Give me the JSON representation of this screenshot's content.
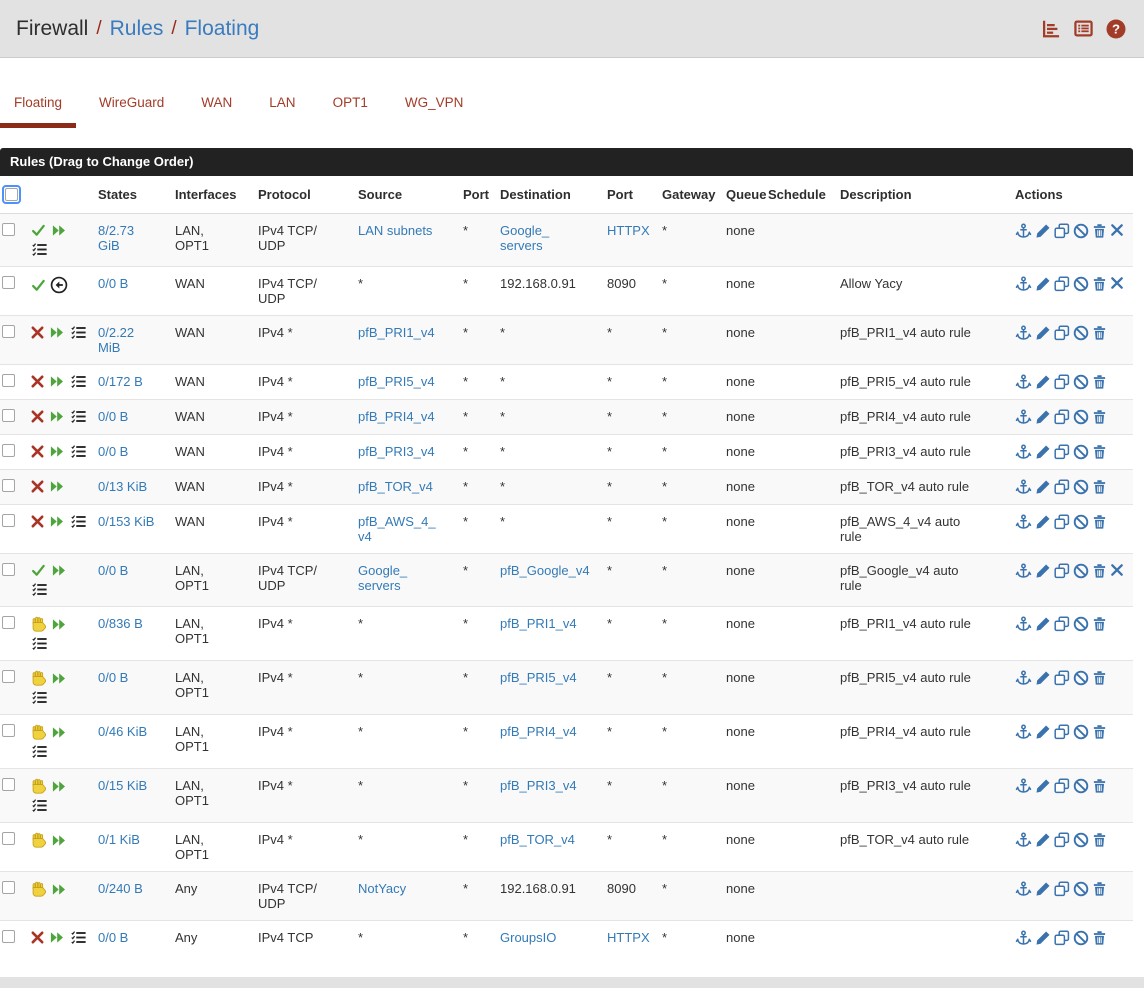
{
  "breadcrumb": {
    "section": "Firewall",
    "separator": "/",
    "page": "Rules",
    "sub": "Floating"
  },
  "topbar_icons": [
    {
      "name": "chart-icon"
    },
    {
      "name": "log-summary-icon"
    },
    {
      "name": "help-icon",
      "glyph": "?"
    }
  ],
  "colors": {
    "brand_red": "#a23c28",
    "tab_underline": "#8c2a18",
    "link_blue": "#337ab7",
    "action_blue": "#3a72ad",
    "pass_green": "#4da53c",
    "block_red": "#a93325",
    "reject_yellow": "#f0d23e",
    "panel_bg": "#222222",
    "bar_bg": "#e2e2e2"
  },
  "tabs": [
    {
      "label": "Floating",
      "active": true
    },
    {
      "label": "WireGuard",
      "active": false
    },
    {
      "label": "WAN",
      "active": false
    },
    {
      "label": "LAN",
      "active": false
    },
    {
      "label": "OPT1",
      "active": false
    },
    {
      "label": "WG_VPN",
      "active": false
    }
  ],
  "panel": {
    "title": "Rules (Drag to Change Order)"
  },
  "table": {
    "columns": [
      "",
      "",
      "States",
      "Interfaces",
      "Protocol",
      "Source",
      "Port",
      "Destination",
      "Port",
      "Gateway",
      "Queue",
      "Schedule",
      "Description",
      "Actions"
    ],
    "action_icons": [
      "anchor",
      "edit",
      "copy",
      "disable",
      "delete"
    ],
    "kill_states_icon": "kill-states",
    "rows": [
      {
        "icons1": [
          "pass",
          "quick"
        ],
        "icons2": [
          "advanced"
        ],
        "states": "8/2.73\nGiB",
        "interfaces": "LAN,\nOPT1",
        "protocol": "IPv4 TCP/\nUDP",
        "source": {
          "text": "LAN subnets"
        },
        "src_port": "*",
        "dest": {
          "text": "Google_\nservers"
        },
        "dest_port": {
          "text": "HTTPX"
        },
        "gateway": "*",
        "queue": "none",
        "schedule": "",
        "description": "",
        "kill_states": true
      },
      {
        "icons1": [
          "pass",
          "direction"
        ],
        "icons2": [],
        "states": "0/0 B",
        "interfaces": "WAN",
        "protocol": "IPv4 TCP/\nUDP",
        "source": "*",
        "src_port": "*",
        "dest": "192.168.0.91",
        "dest_port": "8090",
        "gateway": "*",
        "queue": "none",
        "schedule": "",
        "description": "Allow Yacy",
        "kill_states": true
      },
      {
        "icons1": [
          "block",
          "quick",
          "advanced"
        ],
        "icons2": [],
        "states": "0/2.22\nMiB",
        "interfaces": "WAN",
        "protocol": "IPv4 *",
        "source": {
          "text": "pfB_PRI1_v4"
        },
        "src_port": "*",
        "dest": "*",
        "dest_port": "*",
        "gateway": "*",
        "queue": "none",
        "schedule": "",
        "description": "pfB_PRI1_v4 auto rule",
        "kill_states": false
      },
      {
        "icons1": [
          "block",
          "quick",
          "advanced"
        ],
        "icons2": [],
        "states": "0/172 B",
        "interfaces": "WAN",
        "protocol": "IPv4 *",
        "source": {
          "text": "pfB_PRI5_v4"
        },
        "src_port": "*",
        "dest": "*",
        "dest_port": "*",
        "gateway": "*",
        "queue": "none",
        "schedule": "",
        "description": "pfB_PRI5_v4 auto rule",
        "kill_states": false
      },
      {
        "icons1": [
          "block",
          "quick",
          "advanced"
        ],
        "icons2": [],
        "states": "0/0 B",
        "interfaces": "WAN",
        "protocol": "IPv4 *",
        "source": {
          "text": "pfB_PRI4_v4"
        },
        "src_port": "*",
        "dest": "*",
        "dest_port": "*",
        "gateway": "*",
        "queue": "none",
        "schedule": "",
        "description": "pfB_PRI4_v4 auto rule",
        "kill_states": false
      },
      {
        "icons1": [
          "block",
          "quick",
          "advanced"
        ],
        "icons2": [],
        "states": "0/0 B",
        "interfaces": "WAN",
        "protocol": "IPv4 *",
        "source": {
          "text": "pfB_PRI3_v4"
        },
        "src_port": "*",
        "dest": "*",
        "dest_port": "*",
        "gateway": "*",
        "queue": "none",
        "schedule": "",
        "description": "pfB_PRI3_v4 auto rule",
        "kill_states": false
      },
      {
        "icons1": [
          "block",
          "quick"
        ],
        "icons2": [],
        "states": "0/13 KiB",
        "interfaces": "WAN",
        "protocol": "IPv4 *",
        "source": {
          "text": "pfB_TOR_v4"
        },
        "src_port": "*",
        "dest": "*",
        "dest_port": "*",
        "gateway": "*",
        "queue": "none",
        "schedule": "",
        "description": "pfB_TOR_v4 auto rule",
        "kill_states": false
      },
      {
        "icons1": [
          "block",
          "quick",
          "advanced"
        ],
        "icons2": [],
        "states": "0/153 KiB",
        "interfaces": "WAN",
        "protocol": "IPv4 *",
        "source": {
          "text": "pfB_AWS_4_\nv4"
        },
        "src_port": "*",
        "dest": "*",
        "dest_port": "*",
        "gateway": "*",
        "queue": "none",
        "schedule": "",
        "description": "pfB_AWS_4_v4 auto\nrule",
        "kill_states": false
      },
      {
        "icons1": [
          "pass",
          "quick"
        ],
        "icons2": [
          "advanced"
        ],
        "states": "0/0 B",
        "interfaces": "LAN,\nOPT1",
        "protocol": "IPv4 TCP/\nUDP",
        "source": {
          "text": "Google_\nservers"
        },
        "src_port": "*",
        "dest": {
          "text": "pfB_Google_v4"
        },
        "dest_port": "*",
        "gateway": "*",
        "queue": "none",
        "schedule": "",
        "description": "pfB_Google_v4 auto\nrule",
        "kill_states": true
      },
      {
        "icons1": [
          "reject",
          "quick"
        ],
        "icons2": [
          "advanced"
        ],
        "states": "0/836 B",
        "interfaces": "LAN,\nOPT1",
        "protocol": "IPv4 *",
        "source": "*",
        "src_port": "*",
        "dest": {
          "text": "pfB_PRI1_v4"
        },
        "dest_port": "*",
        "gateway": "*",
        "queue": "none",
        "schedule": "",
        "description": "pfB_PRI1_v4 auto rule",
        "kill_states": false
      },
      {
        "icons1": [
          "reject",
          "quick"
        ],
        "icons2": [
          "advanced"
        ],
        "states": "0/0 B",
        "interfaces": "LAN,\nOPT1",
        "protocol": "IPv4 *",
        "source": "*",
        "src_port": "*",
        "dest": {
          "text": "pfB_PRI5_v4"
        },
        "dest_port": "*",
        "gateway": "*",
        "queue": "none",
        "schedule": "",
        "description": "pfB_PRI5_v4 auto rule",
        "kill_states": false
      },
      {
        "icons1": [
          "reject",
          "quick"
        ],
        "icons2": [
          "advanced"
        ],
        "states": "0/46 KiB",
        "interfaces": "LAN,\nOPT1",
        "protocol": "IPv4 *",
        "source": "*",
        "src_port": "*",
        "dest": {
          "text": "pfB_PRI4_v4"
        },
        "dest_port": "*",
        "gateway": "*",
        "queue": "none",
        "schedule": "",
        "description": "pfB_PRI4_v4 auto rule",
        "kill_states": false
      },
      {
        "icons1": [
          "reject",
          "quick"
        ],
        "icons2": [
          "advanced"
        ],
        "states": "0/15 KiB",
        "interfaces": "LAN,\nOPT1",
        "protocol": "IPv4 *",
        "source": "*",
        "src_port": "*",
        "dest": {
          "text": "pfB_PRI3_v4"
        },
        "dest_port": "*",
        "gateway": "*",
        "queue": "none",
        "schedule": "",
        "description": "pfB_PRI3_v4 auto rule",
        "kill_states": false
      },
      {
        "icons1": [
          "reject",
          "quick"
        ],
        "icons2": [],
        "states": "0/1 KiB",
        "interfaces": "LAN,\nOPT1",
        "protocol": "IPv4 *",
        "source": "*",
        "src_port": "*",
        "dest": {
          "text": "pfB_TOR_v4"
        },
        "dest_port": "*",
        "gateway": "*",
        "queue": "none",
        "schedule": "",
        "description": "pfB_TOR_v4 auto rule",
        "kill_states": false
      },
      {
        "icons1": [
          "reject",
          "quick"
        ],
        "icons2": [],
        "states": "0/240 B",
        "interfaces": "Any",
        "protocol": "IPv4 TCP/\nUDP",
        "source": {
          "text": "NotYacy"
        },
        "src_port": "*",
        "dest": "192.168.0.91",
        "dest_port": "8090",
        "gateway": "*",
        "queue": "none",
        "schedule": "",
        "description": "",
        "kill_states": false
      },
      {
        "icons1": [
          "block",
          "quick",
          "advanced"
        ],
        "icons2": [],
        "states": "0/0 B",
        "interfaces": "Any",
        "protocol": "IPv4 TCP",
        "source": "*",
        "src_port": "*",
        "dest": {
          "text": "GroupsIO"
        },
        "dest_port": {
          "text": "HTTPX"
        },
        "gateway": "*",
        "queue": "none",
        "schedule": "",
        "description": "",
        "kill_states": false
      }
    ]
  }
}
